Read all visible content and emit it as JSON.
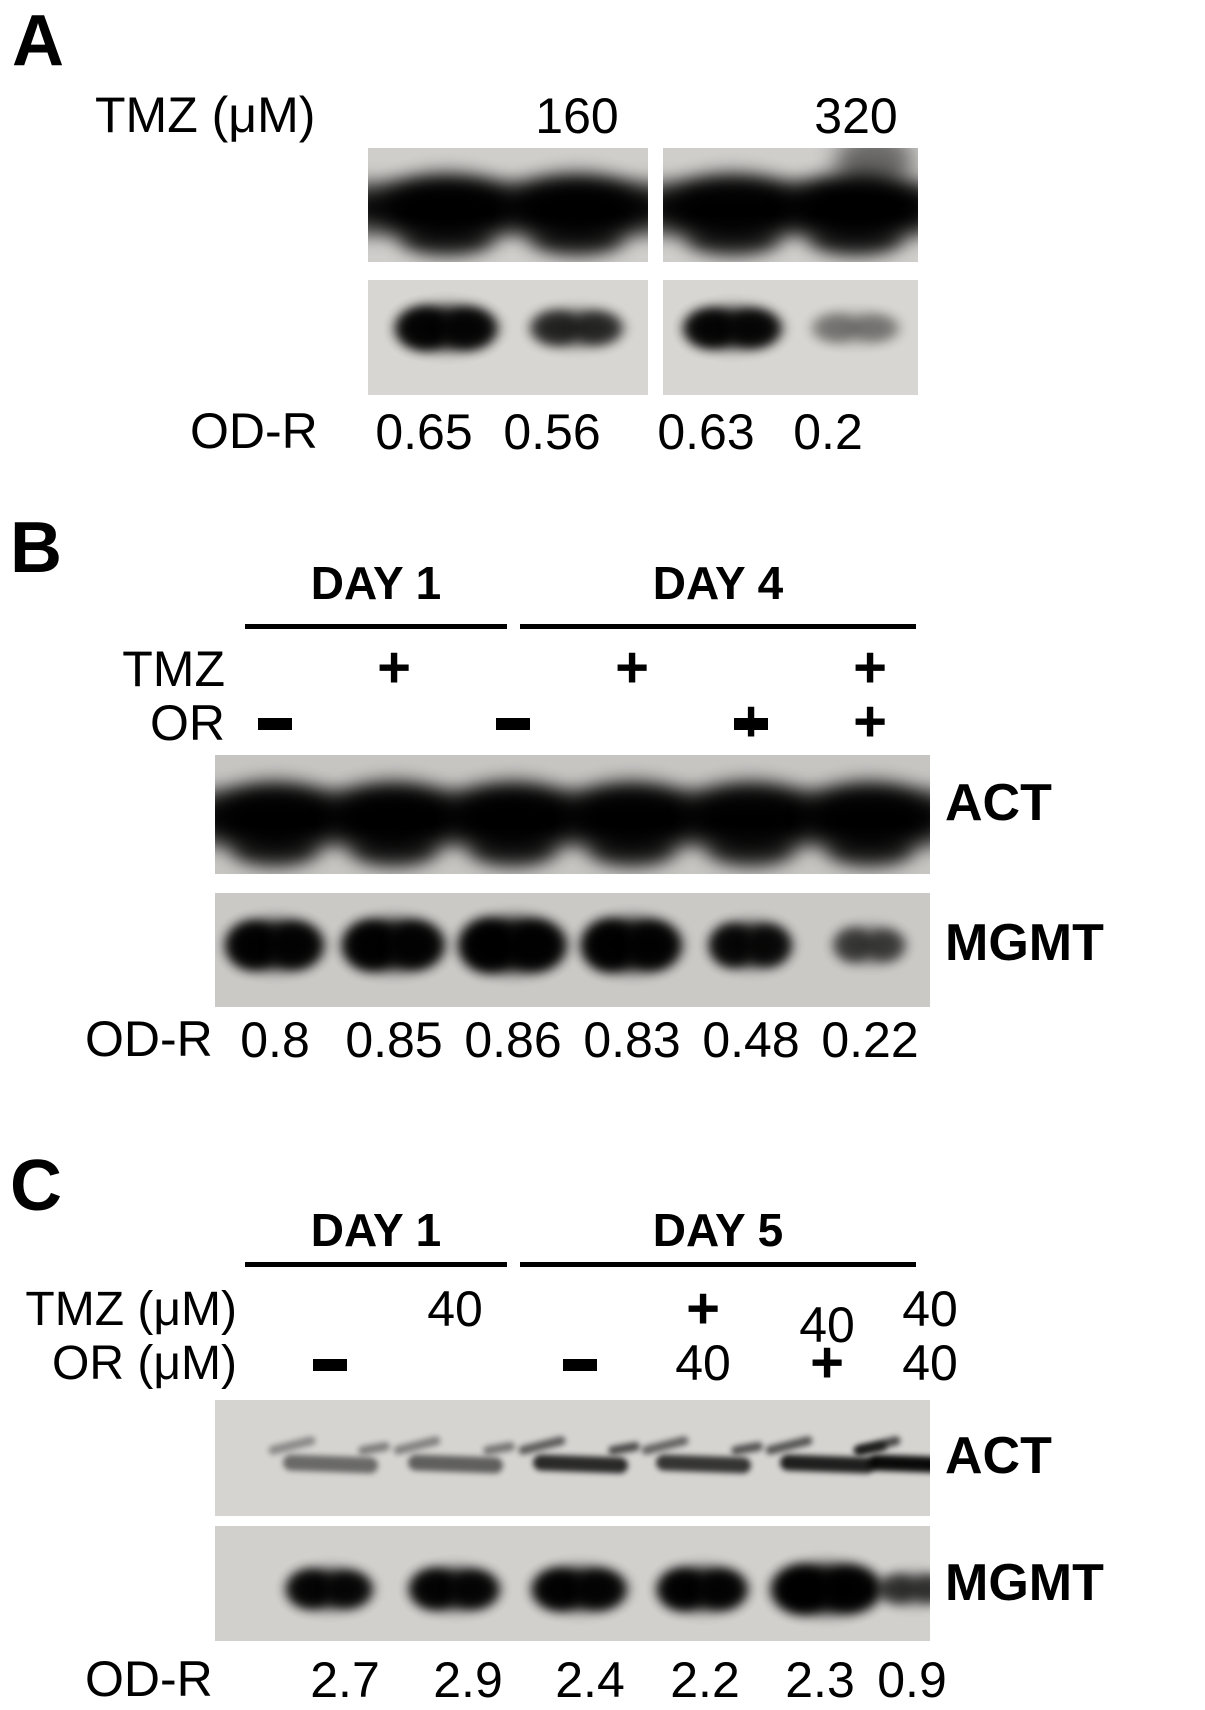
{
  "figure": {
    "panel_a": {
      "letter": "A",
      "row_label": "TMZ (μM)",
      "lane_values": [
        "-",
        "160",
        "-",
        "320"
      ],
      "od_label": "OD-R",
      "od_values": [
        "0.65",
        "0.56",
        "0.63",
        "0.2"
      ],
      "blot_top_intensities": [
        0.97,
        0.96,
        0.94,
        0.97
      ],
      "blot_bottom_intensities": [
        0.9,
        0.62,
        0.88,
        0.28
      ]
    },
    "panel_b": {
      "letter": "B",
      "group_labels": [
        "DAY 1",
        "DAY 4"
      ],
      "row1_label": "TMZ",
      "row1_values": [
        "-",
        "+",
        "-",
        "+",
        "-",
        "+"
      ],
      "row2_label": "OR",
      "row2_values": [
        "-",
        "-",
        "-",
        "-",
        "+",
        "+"
      ],
      "blot1_label": "ACT",
      "blot1_intensities": [
        0.95,
        0.96,
        0.96,
        0.95,
        0.92,
        0.94
      ],
      "blot2_label": "MGMT",
      "blot2_intensities": [
        0.93,
        0.94,
        0.97,
        0.95,
        0.85,
        0.5
      ],
      "od_label": "OD-R",
      "od_values": [
        "0.8",
        "0.85",
        "0.86",
        "0.83",
        "0.48",
        "0.22"
      ]
    },
    "panel_c": {
      "letter": "C",
      "group_labels": [
        "DAY 1",
        "DAY 5"
      ],
      "row1_label": "TMZ (μM)",
      "row1_values": [
        "-",
        "40",
        "-",
        "+",
        "40",
        "40"
      ],
      "row2_label": "OR (μM)",
      "row2_values": [
        "-",
        "-",
        "-",
        "40",
        "+",
        "40"
      ],
      "blot1_label": "ACT",
      "blot1_intensities": [
        0.5,
        0.55,
        0.8,
        0.75,
        0.85,
        0.95
      ],
      "blot2_label": "MGMT",
      "blot2_intensities": [
        0.88,
        0.9,
        0.92,
        0.93,
        0.98,
        0.55
      ],
      "od_label": "OD-R",
      "od_values": [
        "2.7",
        "2.9",
        "2.4",
        "2.2",
        "2.3",
        "0.9"
      ]
    }
  }
}
